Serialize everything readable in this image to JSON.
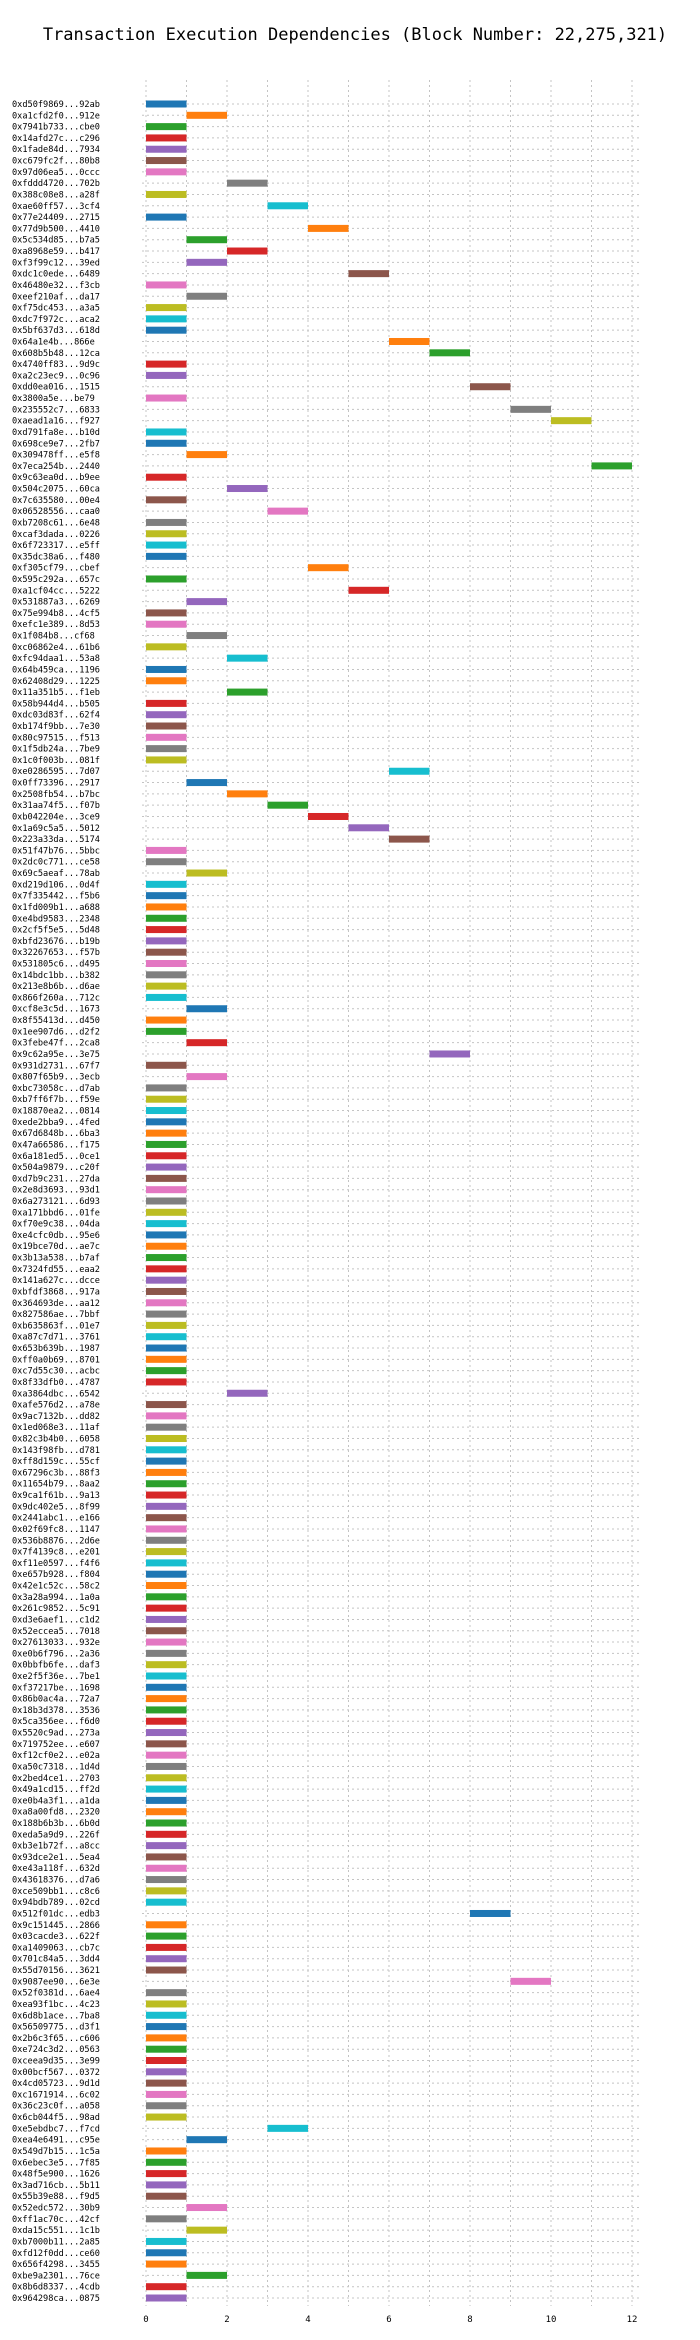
{
  "chart_data": {
    "type": "bar",
    "orientation": "horizontal-gantt",
    "title": "Transaction Execution Dependencies (Block Number: 22,275,321)",
    "xlabel": "",
    "ylabel": "",
    "xlim": [
      0,
      12
    ],
    "xticks": [
      0,
      2,
      4,
      6,
      8,
      10,
      12
    ],
    "grid": true,
    "palette": [
      "#1f77b4",
      "#ff7f0e",
      "#2ca02c",
      "#d62728",
      "#9467bd",
      "#8c564b",
      "#e377c2",
      "#7f7f7f",
      "#bcbd22",
      "#17becf"
    ],
    "rows": [
      [
        "0xd50f9869...92ab",
        0
      ],
      [
        "0xa1cfd2f0...912e",
        1
      ],
      [
        "0x7941b733...cbe0",
        0
      ],
      [
        "0x14afd27c...c296",
        0
      ],
      [
        "0x1fade84d...7934",
        0
      ],
      [
        "0xc679fc2f...80b8",
        0
      ],
      [
        "0x97d06ea5...0ccc",
        0
      ],
      [
        "0xfddd4720...702b",
        2
      ],
      [
        "0x388c08e8...a28f",
        0
      ],
      [
        "0xae60ff57...3cf4",
        3
      ],
      [
        "0x77e24409...2715",
        0
      ],
      [
        "0x77d9b500...4410",
        4
      ],
      [
        "0x5c534d85...b7a5",
        1
      ],
      [
        "0xa8968e59...b417",
        2
      ],
      [
        "0xf3f99c12...39ed",
        1
      ],
      [
        "0xdc1c0ede...6489",
        5
      ],
      [
        "0x46480e32...f3cb",
        0
      ],
      [
        "0xeef210af...da17",
        1
      ],
      [
        "0xf75dc453...a3a5",
        0
      ],
      [
        "0xdc7f972c...aca2",
        0
      ],
      [
        "0x5bf637d3...618d",
        0
      ],
      [
        "0x64a1e4b...866e",
        6
      ],
      [
        "0x608b5b48...12ca",
        7
      ],
      [
        "0x4740ff83...9d9c",
        0
      ],
      [
        "0xa2c23ec9...0c96",
        0
      ],
      [
        "0xdd0ea016...1515",
        8
      ],
      [
        "0x3800a5e...be79",
        0
      ],
      [
        "0x235552c7...6833",
        9
      ],
      [
        "0xaead1a16...f927",
        10
      ],
      [
        "0xd791fa8e...b10d",
        0
      ],
      [
        "0x698ce9e7...2fb7",
        0
      ],
      [
        "0x309478ff...e5f8",
        1
      ],
      [
        "0x7eca254b...2440",
        11
      ],
      [
        "0x9c63ea0d...b9ee",
        0
      ],
      [
        "0x504c2075...60ca",
        2
      ],
      [
        "0x7c635580...00e4",
        0
      ],
      [
        "0x06528556...caa0",
        3
      ],
      [
        "0xb7208c61...6e48",
        0
      ],
      [
        "0xcaf3dada...0226",
        0
      ],
      [
        "0x6f723317...e5ff",
        0
      ],
      [
        "0x35dc38a6...f480",
        0
      ],
      [
        "0xf305cf79...cbef",
        4
      ],
      [
        "0x595c292a...657c",
        0
      ],
      [
        "0xa1cf04cc...5222",
        5
      ],
      [
        "0x531887a3...6269",
        1
      ],
      [
        "0x75e994b8...4cf5",
        0
      ],
      [
        "0xefc1e389...8d53",
        0
      ],
      [
        "0x1f084b8...cf68",
        1
      ],
      [
        "0xc06862e4...61b6",
        0
      ],
      [
        "0xfc94daa1...53a8",
        2
      ],
      [
        "0x64b459ca...1196",
        0
      ],
      [
        "0x62408d29...1225",
        0
      ],
      [
        "0x11a351b5...f1eb",
        2
      ],
      [
        "0x58b944d4...b505",
        0
      ],
      [
        "0xdc03d83f...62f4",
        0
      ],
      [
        "0xb174f9bb...7e30",
        0
      ],
      [
        "0x80c97515...f513",
        0
      ],
      [
        "0x1f5db24a...7be9",
        0
      ],
      [
        "0x1c0f003b...081f",
        0
      ],
      [
        "0xe0286595...7d07",
        6
      ],
      [
        "0x0ff73396...2917",
        1
      ],
      [
        "0x2508fb54...b7bc",
        2
      ],
      [
        "0x31aa74f5...f07b",
        3
      ],
      [
        "0xb042204e...3ce9",
        4
      ],
      [
        "0x1a69c5a5...5012",
        5
      ],
      [
        "0x223a33da...5174",
        6
      ],
      [
        "0x51f47b76...5bbc",
        0
      ],
      [
        "0x2dc0c771...ce58",
        0
      ],
      [
        "0x69c5aeaf...78ab",
        1
      ],
      [
        "0xd219d106...0d4f",
        0
      ],
      [
        "0x7f335442...f5b6",
        0
      ],
      [
        "0x1fd009b1...a688",
        0
      ],
      [
        "0xe4bd9583...2348",
        0
      ],
      [
        "0x2cf5f5e5...5d48",
        0
      ],
      [
        "0xbfd23676...b19b",
        0
      ],
      [
        "0x32267653...f57b",
        0
      ],
      [
        "0x531805c6...d495",
        0
      ],
      [
        "0x14bdc1bb...b382",
        0
      ],
      [
        "0x213e8b6b...d6ae",
        0
      ],
      [
        "0x866f260a...712c",
        0
      ],
      [
        "0xcf8e3c5d...1673",
        1
      ],
      [
        "0x8f55413d...d450",
        0
      ],
      [
        "0x1ee907d6...d2f2",
        0
      ],
      [
        "0x3febe47f...2ca8",
        1
      ],
      [
        "0x9c62a95e...3e75",
        7
      ],
      [
        "0x931d2731...67f7",
        0
      ],
      [
        "0x807f65b9...3ecb",
        1
      ],
      [
        "0xbc73058c...d7ab",
        0
      ],
      [
        "0xb7ff6f7b...f59e",
        0
      ],
      [
        "0x18870ea2...0814",
        0
      ],
      [
        "0xede2bba9...4fed",
        0
      ],
      [
        "0x67d6848b...6ba3",
        0
      ],
      [
        "0x47a66586...f175",
        0
      ],
      [
        "0x6a181ed5...0ce1",
        0
      ],
      [
        "0x504a9879...c20f",
        0
      ],
      [
        "0xd7b9c231...27da",
        0
      ],
      [
        "0x2e8d3693...93d1",
        0
      ],
      [
        "0x6a273121...6d93",
        0
      ],
      [
        "0xa171bbd6...01fe",
        0
      ],
      [
        "0xf70e9c38...04da",
        0
      ],
      [
        "0xe4cfc0db...95e6",
        0
      ],
      [
        "0x19bce70d...ae7c",
        0
      ],
      [
        "0x3b13a538...b7af",
        0
      ],
      [
        "0x7324fd55...eaa2",
        0
      ],
      [
        "0x141a627c...dcce",
        0
      ],
      [
        "0xbfdf3868...917a",
        0
      ],
      [
        "0x364693de...aa12",
        0
      ],
      [
        "0x827586ae...7bbf",
        0
      ],
      [
        "0xb635863f...01e7",
        0
      ],
      [
        "0xa87c7d71...3761",
        0
      ],
      [
        "0x653b639b...1987",
        0
      ],
      [
        "0xff0a0b69...8701",
        0
      ],
      [
        "0xc7d55c30...acbc",
        0
      ],
      [
        "0x8f33dfb0...4787",
        0
      ],
      [
        "0xa3864dbc...6542",
        2
      ],
      [
        "0xafe576d2...a78e",
        0
      ],
      [
        "0x9ac7132b...dd82",
        0
      ],
      [
        "0x1ed068e3...11af",
        0
      ],
      [
        "0x82c3b4b0...6058",
        0
      ],
      [
        "0x143f98fb...d781",
        0
      ],
      [
        "0xff8d159c...55cf",
        0
      ],
      [
        "0x67296c3b...88f3",
        0
      ],
      [
        "0x11654b79...8aa2",
        0
      ],
      [
        "0x9ca1f61b...9a13",
        0
      ],
      [
        "0x9dc402e5...8f99",
        0
      ],
      [
        "0x2441abc1...e166",
        0
      ],
      [
        "0x02f69fc8...1147",
        0
      ],
      [
        "0x536b8876...2d6e",
        0
      ],
      [
        "0x7f4139c8...e201",
        0
      ],
      [
        "0xf11e0597...f4f6",
        0
      ],
      [
        "0xe657b928...f804",
        0
      ],
      [
        "0x42e1c52c...58c2",
        0
      ],
      [
        "0x3a28a994...1a0a",
        0
      ],
      [
        "0x261c9852...5c91",
        0
      ],
      [
        "0xd3e6aef1...c1d2",
        0
      ],
      [
        "0x52eccea5...7018",
        0
      ],
      [
        "0x27613033...932e",
        0
      ],
      [
        "0xe0b6f796...2a36",
        0
      ],
      [
        "0x0bbfb6fe...daf3",
        0
      ],
      [
        "0xe2f5f36e...7be1",
        0
      ],
      [
        "0xf37217be...1698",
        0
      ],
      [
        "0x86b0ac4a...72a7",
        0
      ],
      [
        "0x18b3d378...3536",
        0
      ],
      [
        "0x5ca356ee...f6d0",
        0
      ],
      [
        "0x5520c9ad...273a",
        0
      ],
      [
        "0x719752ee...e607",
        0
      ],
      [
        "0xf12cf0e2...e02a",
        0
      ],
      [
        "0xa50c7318...1d4d",
        0
      ],
      [
        "0x2bed4ce1...2703",
        0
      ],
      [
        "0x49a1cd15...ff2d",
        0
      ],
      [
        "0xe0b4a3f1...a1da",
        0
      ],
      [
        "0xa8a00fd8...2320",
        0
      ],
      [
        "0x188b6b3b...6b0d",
        0
      ],
      [
        "0xeda5a9d9...226f",
        0
      ],
      [
        "0xb3e1b72f...a8cc",
        0
      ],
      [
        "0x93dce2e1...5ea4",
        0
      ],
      [
        "0xe43a118f...632d",
        0
      ],
      [
        "0x43618376...d7a6",
        0
      ],
      [
        "0xce509bb1...c8c6",
        0
      ],
      [
        "0x94bdb789...02cd",
        0
      ],
      [
        "0x512f01dc...edb3",
        8
      ],
      [
        "0x9c151445...2866",
        0
      ],
      [
        "0x03cacde3...622f",
        0
      ],
      [
        "0xa1409063...cb7c",
        0
      ],
      [
        "0x701c84a5...3dd4",
        0
      ],
      [
        "0x55d70156...3621",
        0
      ],
      [
        "0x9087ee90...6e3e",
        9
      ],
      [
        "0x52f0381d...6ae4",
        0
      ],
      [
        "0xea93f1bc...4c23",
        0
      ],
      [
        "0x6d8b1ace...7ba8",
        0
      ],
      [
        "0x56509775...d3f1",
        0
      ],
      [
        "0x2b6c3f65...c606",
        0
      ],
      [
        "0xe724c3d2...0563",
        0
      ],
      [
        "0xceea9d35...3e99",
        0
      ],
      [
        "0x00bcf567...0372",
        0
      ],
      [
        "0x4cd05723...9d1d",
        0
      ],
      [
        "0xc1671914...6c02",
        0
      ],
      [
        "0x36c23c0f...a058",
        0
      ],
      [
        "0x6cb044f5...98ad",
        0
      ],
      [
        "0xe5ebdbc7...f7cd",
        3
      ],
      [
        "0xea4e6491...c95e",
        1
      ],
      [
        "0x549d7b15...1c5a",
        0
      ],
      [
        "0x6ebec3e5...7f85",
        0
      ],
      [
        "0x48f5e900...1626",
        0
      ],
      [
        "0x3ad716cb...5b11",
        0
      ],
      [
        "0x55b39e88...f9d5",
        0
      ],
      [
        "0x52edc572...30b9",
        1
      ],
      [
        "0xff1ac70c...42cf",
        0
      ],
      [
        "0xda15c551...1c1b",
        1
      ],
      [
        "0xb7000b11...2a85",
        0
      ],
      [
        "0xfd12f0dd...ce60",
        0
      ],
      [
        "0x656f4298...3455",
        0
      ],
      [
        "0xbe9a2301...76ce",
        1
      ],
      [
        "0x8b6d8337...4cdb",
        0
      ],
      [
        "0x964298ca...0875",
        0
      ]
    ]
  }
}
